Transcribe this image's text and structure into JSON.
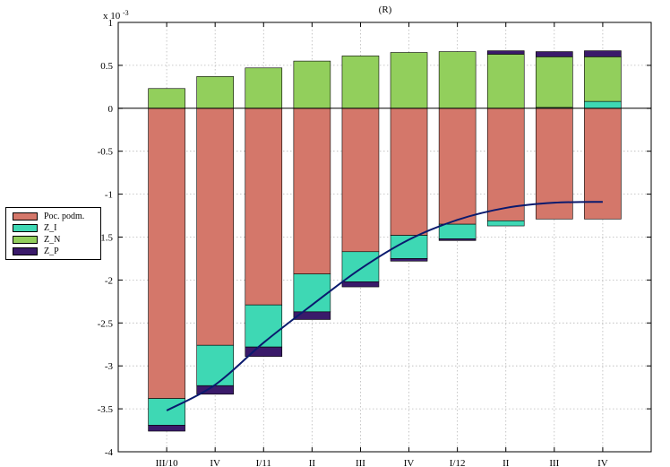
{
  "chart_data": {
    "type": "bar",
    "stacked": true,
    "title": "(R)",
    "exponent_label": "x 10",
    "exponent_power": "-3",
    "categories": [
      "III/10",
      "IV",
      "I/11",
      "II",
      "III",
      "IV",
      "I/12",
      "II",
      "III",
      "IV"
    ],
    "ylim": [
      -4,
      1
    ],
    "yticks": [
      1,
      0.5,
      0,
      -0.5,
      -1,
      -1.5,
      -2,
      -2.5,
      -3,
      -3.5,
      -4
    ],
    "ytick_labels": [
      "1",
      "0.5",
      "0",
      "-0.5",
      "-1",
      "-1.5",
      "-2",
      "-2.5",
      "-3",
      "-3.5",
      "-4"
    ],
    "grid": true,
    "legend_position": "left",
    "series": [
      {
        "name": "Poc. podm.",
        "color": "#d4776a",
        "values": [
          -3.38,
          -2.76,
          -2.29,
          -1.93,
          -1.67,
          -1.48,
          -1.35,
          -1.31,
          -1.29,
          -1.29
        ]
      },
      {
        "name": "Z_I",
        "color": "#3ed8b4",
        "values": [
          -0.31,
          -0.47,
          -0.49,
          -0.44,
          -0.35,
          -0.27,
          -0.17,
          -0.06,
          0.01,
          0.08
        ]
      },
      {
        "name": "Z_N",
        "color": "#92cf5c",
        "values": [
          0.23,
          0.37,
          0.47,
          0.55,
          0.61,
          0.65,
          0.66,
          0.63,
          0.59,
          0.52
        ]
      },
      {
        "name": "Z_P",
        "color": "#3a1a6a",
        "values": [
          -0.07,
          -0.1,
          -0.11,
          -0.09,
          -0.06,
          -0.03,
          -0.02,
          0.04,
          0.06,
          0.07
        ]
      }
    ],
    "line": {
      "color": "#0a1a6e",
      "values": [
        -3.52,
        -3.22,
        -2.73,
        -2.29,
        -1.87,
        -1.53,
        -1.3,
        -1.16,
        -1.1,
        -1.09
      ]
    }
  }
}
